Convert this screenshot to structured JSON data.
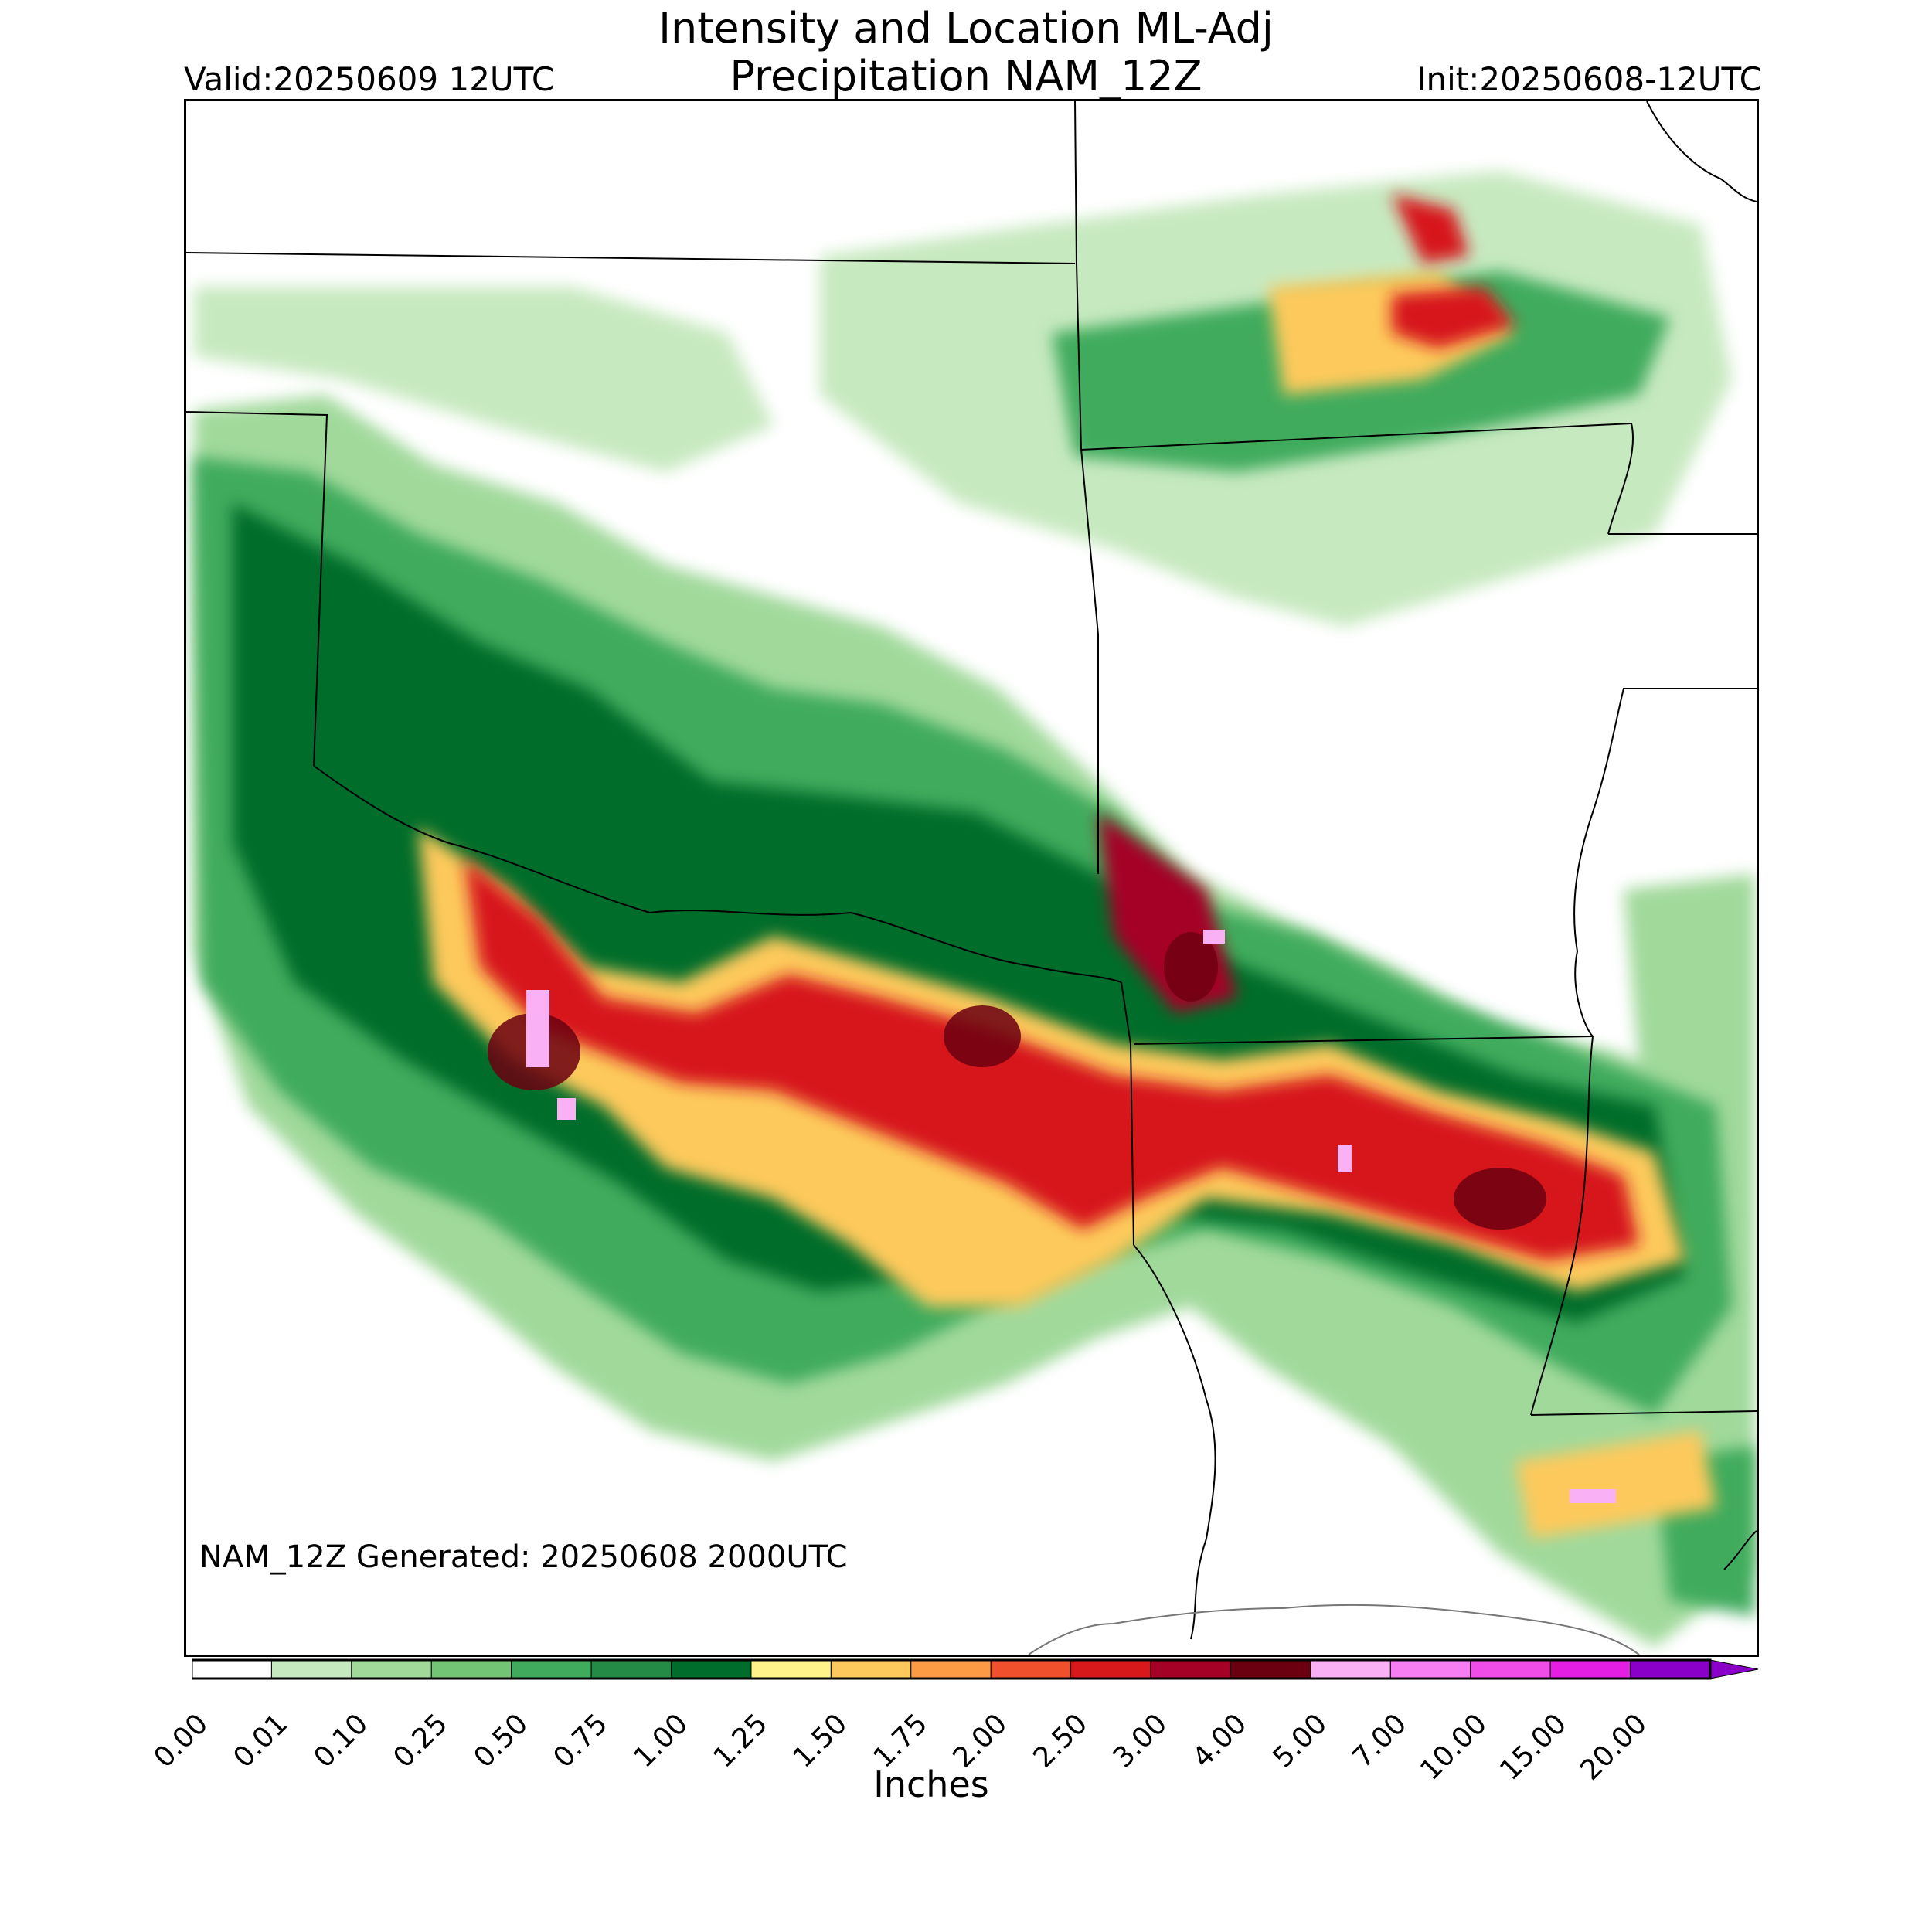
{
  "title_line1": "Intensity and Location ML-Adj",
  "title_line2": "Precipitation NAM_12Z",
  "valid": "Valid:20250609 12UTC",
  "init": "Init:20250608-12UTC",
  "generated": "NAM_12Z Generated: 20250608 2000UTC",
  "colorbar": {
    "units": "Inches",
    "ticks": [
      "0.00",
      "0.01",
      "0.10",
      "0.25",
      "0.50",
      "0.75",
      "1.00",
      "1.25",
      "1.50",
      "1.75",
      "2.00",
      "2.50",
      "3.00",
      "4.00",
      "5.00",
      "7.00",
      "10.00",
      "15.00",
      "20.00"
    ],
    "colors": [
      "#ffffff",
      "#c7e9c0",
      "#a1d99b",
      "#74c476",
      "#41ab5d",
      "#238b45",
      "#006d2c",
      "#fff38a",
      "#fdc95c",
      "#fd9a44",
      "#f0512c",
      "#d7191c",
      "#a50026",
      "#6b0010",
      "#f9b0f4",
      "#f77ef2",
      "#f04ce8",
      "#e41ee3",
      "#8a00c8"
    ],
    "extend": "max"
  },
  "colors": {
    "background": "#ffffff",
    "border": "#000000",
    "state_lines": "#000000",
    "coast": "#888888"
  }
}
